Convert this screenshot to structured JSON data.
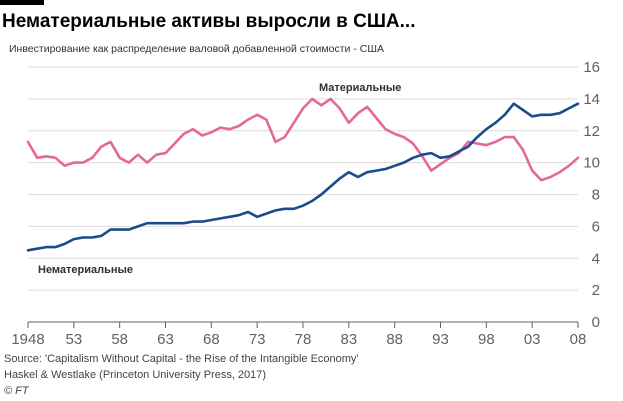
{
  "header": {
    "title": "Нематериальные активы выросли в США...",
    "subtitle": "Инвестирование как распределение валовой добавленной стоимости - США"
  },
  "footer": {
    "source_line1": "Source: 'Capitalism Without Capital - the Rise of the Intangible Economy'",
    "source_line2": "Haskel & Westlake (Princeton University Press, 2017)",
    "credit": "© FT"
  },
  "colors": {
    "tangible": "#e5689a",
    "intangible": "#1c4b8c",
    "grid": "#e0dcd8",
    "axis": "#66605c"
  },
  "chart_data": {
    "type": "line",
    "title": "",
    "xlabel": "",
    "ylabel": "",
    "xlim": [
      1948,
      2008
    ],
    "ylim": [
      0,
      16
    ],
    "x_tick_labels": [
      "1948",
      "53",
      "58",
      "63",
      "68",
      "73",
      "78",
      "83",
      "88",
      "93",
      "98",
      "03",
      "08"
    ],
    "x_tick_values": [
      1948,
      1953,
      1958,
      1963,
      1968,
      1973,
      1978,
      1983,
      1988,
      1993,
      1998,
      2003,
      2008
    ],
    "y_ticks": [
      0,
      2,
      4,
      6,
      8,
      10,
      12,
      14,
      16
    ],
    "y_axis_side": "right",
    "grid": true,
    "series": [
      {
        "name": "Материальные",
        "color": "#e5689a",
        "x": [
          1948,
          1949,
          1950,
          1951,
          1952,
          1953,
          1954,
          1955,
          1956,
          1957,
          1958,
          1959,
          1960,
          1961,
          1962,
          1963,
          1964,
          1965,
          1966,
          1967,
          1968,
          1969,
          1970,
          1971,
          1972,
          1973,
          1974,
          1975,
          1976,
          1977,
          1978,
          1979,
          1980,
          1981,
          1982,
          1983,
          1984,
          1985,
          1986,
          1987,
          1988,
          1989,
          1990,
          1991,
          1992,
          1993,
          1994,
          1995,
          1996,
          1997,
          1998,
          1999,
          2000,
          2001,
          2002,
          2003,
          2004,
          2005,
          2006,
          2007,
          2008
        ],
        "values": [
          11.3,
          10.3,
          10.4,
          10.3,
          9.8,
          10.0,
          10.0,
          10.3,
          11.0,
          11.3,
          10.3,
          10.0,
          10.5,
          10.0,
          10.5,
          10.6,
          11.2,
          11.8,
          12.1,
          11.7,
          11.9,
          12.2,
          12.1,
          12.3,
          12.7,
          13.0,
          12.7,
          11.3,
          11.6,
          12.5,
          13.4,
          14.0,
          13.6,
          14.0,
          13.4,
          12.5,
          13.1,
          13.5,
          12.8,
          12.1,
          11.8,
          11.6,
          11.2,
          10.4,
          9.5,
          9.9,
          10.3,
          10.6,
          11.3,
          11.2,
          11.1,
          11.3,
          11.6,
          11.6,
          10.8,
          9.5,
          8.9,
          9.1,
          9.4,
          9.8,
          10.3
        ]
      },
      {
        "name": "Нематериальные",
        "color": "#1c4b8c",
        "x": [
          1948,
          1949,
          1950,
          1951,
          1952,
          1953,
          1954,
          1955,
          1956,
          1957,
          1958,
          1959,
          1960,
          1961,
          1962,
          1963,
          1964,
          1965,
          1966,
          1967,
          1968,
          1969,
          1970,
          1971,
          1972,
          1973,
          1974,
          1975,
          1976,
          1977,
          1978,
          1979,
          1980,
          1981,
          1982,
          1983,
          1984,
          1985,
          1986,
          1987,
          1988,
          1989,
          1990,
          1991,
          1992,
          1993,
          1994,
          1995,
          1996,
          1997,
          1998,
          1999,
          2000,
          2001,
          2002,
          2003,
          2004,
          2005,
          2006,
          2007,
          2008
        ],
        "values": [
          4.5,
          4.6,
          4.7,
          4.7,
          4.9,
          5.2,
          5.3,
          5.3,
          5.4,
          5.8,
          5.8,
          5.8,
          6.0,
          6.2,
          6.2,
          6.2,
          6.2,
          6.2,
          6.3,
          6.3,
          6.4,
          6.5,
          6.6,
          6.7,
          6.9,
          6.6,
          6.8,
          7.0,
          7.1,
          7.1,
          7.3,
          7.6,
          8.0,
          8.5,
          9.0,
          9.4,
          9.1,
          9.4,
          9.5,
          9.6,
          9.8,
          10.0,
          10.3,
          10.5,
          10.6,
          10.3,
          10.4,
          10.7,
          11.0,
          11.6,
          12.1,
          12.5,
          13.0,
          13.7,
          13.3,
          12.9,
          13.0,
          13.0,
          13.1,
          13.4,
          13.7
        ]
      }
    ],
    "annotations": [
      {
        "text": "Материальные",
        "series": 0
      },
      {
        "text": "Нематериальные",
        "series": 1
      }
    ]
  }
}
